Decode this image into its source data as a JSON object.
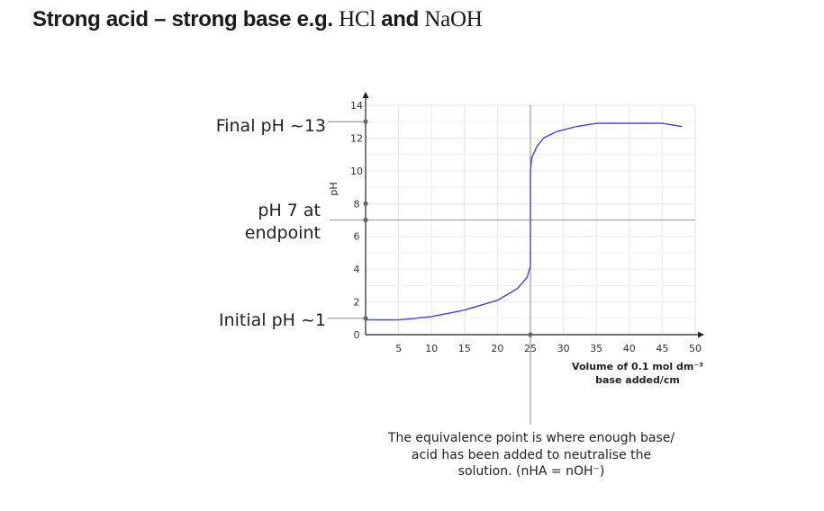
{
  "title": {
    "prefix": "Strong acid – strong base e.g. ",
    "acid": "HCl",
    "mid": " and ",
    "base": "NaOH"
  },
  "chart_data": {
    "type": "line",
    "ylabel": "pH",
    "xlabel_line1": "Volume of 0.1 mol dm⁻³",
    "xlabel_line2": "base added/cm",
    "xlim": [
      0,
      50
    ],
    "ylim": [
      0,
      14
    ],
    "x_ticks": [
      "5",
      "10",
      "15",
      "20",
      "25",
      "30",
      "35",
      "40",
      "45",
      "50"
    ],
    "y_ticks": [
      "0",
      "2",
      "4",
      "6",
      "8",
      "10",
      "12",
      "14"
    ],
    "grid": true,
    "series": [
      {
        "color": "#3f3fe6",
        "x": [
          0,
          5,
          10,
          15,
          20,
          23,
          24.5,
          25,
          25,
          25.2,
          26,
          27,
          29,
          32,
          35,
          40,
          45,
          48
        ],
        "y": [
          0.9,
          0.9,
          1.1,
          1.5,
          2.1,
          2.8,
          3.5,
          4.2,
          10.0,
          10.8,
          11.5,
          12.0,
          12.4,
          12.7,
          12.9,
          12.9,
          12.9,
          12.7
        ]
      }
    ],
    "reference_lines": [
      {
        "label": "Final pH ~13",
        "y": 13
      },
      {
        "label_line1": "pH 7 at",
        "label_line2": "endpoint",
        "y": 7
      },
      {
        "label": "Initial pH ~1",
        "y": 1
      }
    ],
    "equivalence_x": 25
  },
  "note": {
    "line1": "The equivalence point is where enough base/",
    "line2": "acid has been added to neutralise the",
    "line3": "solution. (nHA = nOH⁻)"
  }
}
